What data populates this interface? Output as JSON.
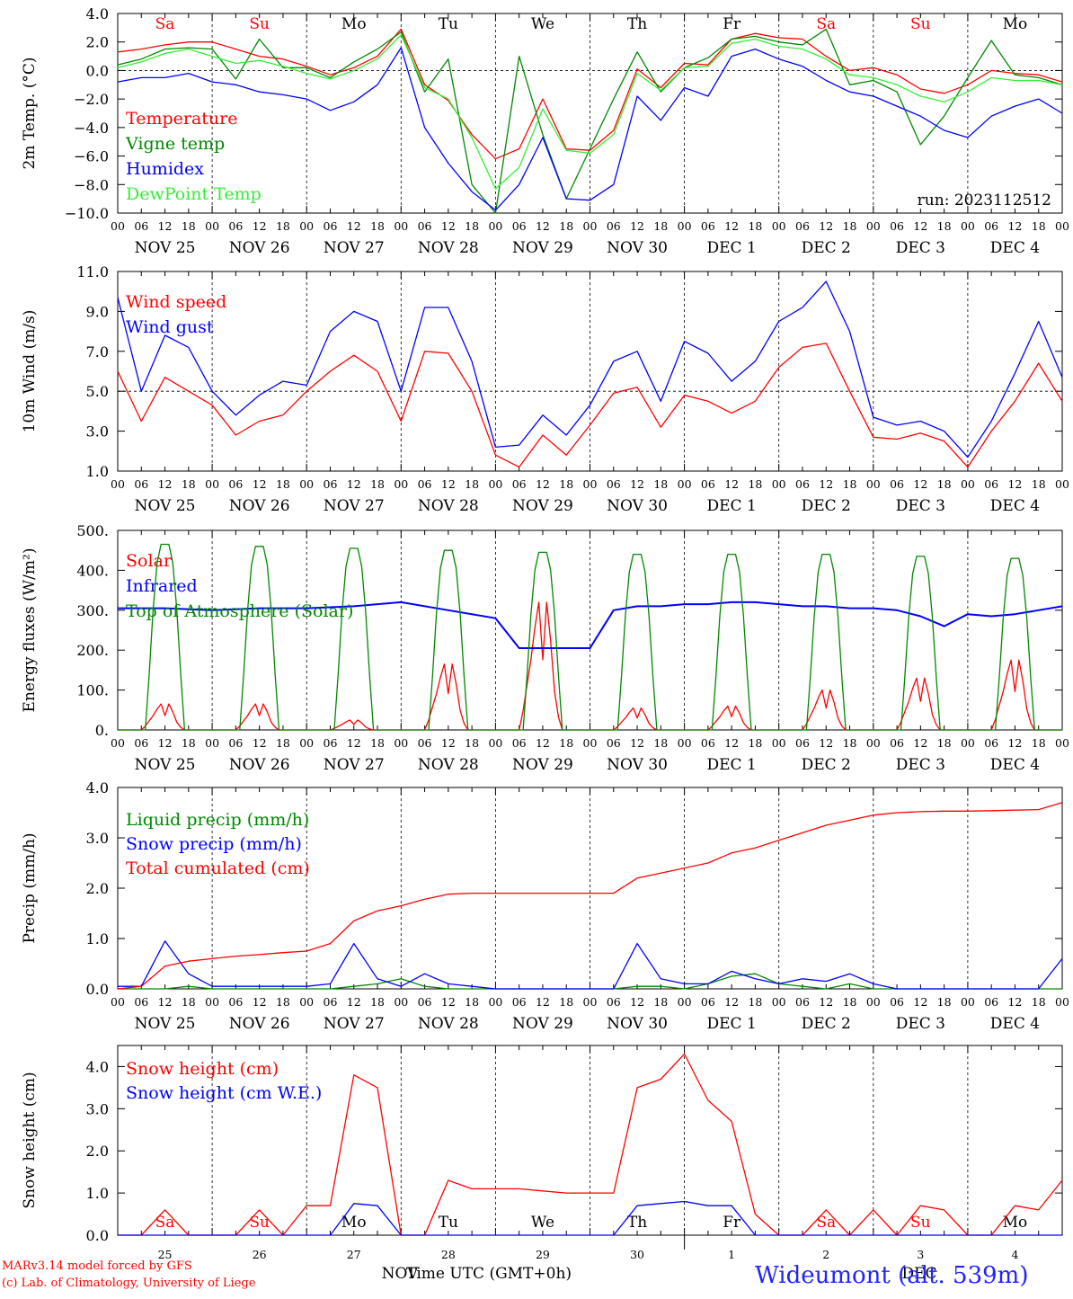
{
  "domain": "Chart",
  "footer": {
    "model": "MARv3.14 model forced by GFS",
    "credit": "(c) Lab. of Climatology, University of Liege",
    "station": "Wideumont (alt. 539m)",
    "xlabel": "Time UTC (GMT+0h)"
  },
  "colors": {
    "red": "#ff0000",
    "green": "#008800",
    "blue": "#0000ff",
    "lightgreen": "#33ee33",
    "grid": "#000000"
  },
  "time_axis": {
    "hour_ticks": [
      "00",
      "06",
      "12",
      "18"
    ],
    "date_labels": [
      "NOV 25",
      "NOV 26",
      "NOV 27",
      "NOV 28",
      "NOV 29",
      "NOV 30",
      "DEC  1",
      "DEC  2",
      "DEC  3",
      "DEC  4"
    ],
    "weekdays": [
      "Sa",
      "Su",
      "Mo",
      "Tu",
      "We",
      "Th",
      "Fr",
      "Sa",
      "Su",
      "Mo"
    ],
    "weekday_colors": [
      "red",
      "red",
      "black",
      "black",
      "black",
      "black",
      "black",
      "red",
      "red",
      "black"
    ],
    "last_panel_days": [
      "25",
      "26",
      "27",
      "28",
      "29",
      "30",
      "1",
      "2",
      "3",
      "4"
    ],
    "last_panel_months": [
      "NOV",
      "DEC"
    ]
  },
  "chart_data": [
    {
      "type": "line",
      "ylabel": "2m Temp. (°C)",
      "ylim": [
        -10,
        4
      ],
      "yticks": [
        "4.0",
        "2.0",
        "0.0",
        "−2.0",
        "−4.0",
        "−6.0",
        "−8.0",
        "−10.0"
      ],
      "ytick_values": [
        4,
        2,
        0,
        -2,
        -4,
        -6,
        -8,
        -10
      ],
      "ref_line": 0,
      "annotation": "run: 2023112512",
      "x_hours": [
        0,
        6,
        12,
        18,
        24,
        30,
        36,
        42,
        48,
        54,
        60,
        66,
        72,
        78,
        84,
        90,
        96,
        102,
        108,
        114,
        120,
        126,
        132,
        138,
        144,
        150,
        156,
        162,
        168,
        174,
        180,
        186,
        192,
        198,
        204,
        210,
        216,
        222,
        228,
        234,
        240
      ],
      "series": [
        {
          "name": "Temperature",
          "color": "red",
          "values": [
            1.3,
            1.5,
            1.8,
            2.0,
            2.0,
            1.5,
            1.0,
            0.8,
            0.3,
            -0.3,
            0.2,
            1.0,
            2.9,
            -1.0,
            -2.1,
            -4.5,
            -6.2,
            -5.5,
            -2.0,
            -5.5,
            -5.6,
            -4.2,
            0.1,
            -1.2,
            0.5,
            0.4,
            2.2,
            2.6,
            2.3,
            2.2,
            1.0,
            0.0,
            0.2,
            -0.3,
            -1.3,
            -1.6,
            -1.0,
            0.0,
            -0.2,
            -0.3,
            -0.8
          ]
        },
        {
          "name": "Vigne temp",
          "color": "green",
          "values": [
            0.4,
            0.8,
            1.5,
            1.6,
            1.5,
            -0.6,
            2.2,
            0.2,
            0.2,
            -0.5,
            0.6,
            1.5,
            2.7,
            -1.5,
            0.8,
            -8.0,
            -10.0,
            1.0,
            -4.5,
            -9.0,
            -5.5,
            -2.0,
            1.3,
            -1.5,
            0.2,
            0.9,
            2.2,
            2.4,
            2.0,
            1.8,
            2.9,
            -1.0,
            -0.7,
            -1.5,
            -5.2,
            -3.2,
            -0.5,
            2.1,
            -0.3,
            -0.5,
            -1.0
          ]
        },
        {
          "name": "Humidex",
          "color": "blue",
          "values": [
            -0.8,
            -0.5,
            -0.5,
            -0.2,
            -0.8,
            -1.0,
            -1.5,
            -1.7,
            -2.0,
            -2.8,
            -2.2,
            -1.0,
            1.6,
            -4.0,
            -6.5,
            -8.5,
            -9.8,
            -8.0,
            -4.7,
            -9.0,
            -9.1,
            -8.0,
            -1.8,
            -3.5,
            -1.2,
            -1.8,
            1.0,
            1.5,
            0.8,
            0.3,
            -0.7,
            -1.5,
            -1.8,
            -2.5,
            -3.2,
            -4.2,
            -4.7,
            -3.2,
            -2.5,
            -2.0,
            -3.0
          ]
        },
        {
          "name": "DewPoint Temp",
          "color": "lightgreen",
          "values": [
            0.2,
            0.6,
            1.2,
            1.5,
            1.0,
            0.5,
            0.7,
            0.3,
            -0.2,
            -0.6,
            0.0,
            0.8,
            2.5,
            -1.2,
            -2.0,
            -4.7,
            -8.3,
            -6.8,
            -2.7,
            -5.6,
            -5.8,
            -4.5,
            -0.2,
            -1.4,
            0.2,
            0.3,
            1.9,
            2.2,
            1.7,
            1.5,
            0.8,
            -0.3,
            -0.5,
            -1.0,
            -1.8,
            -2.2,
            -1.5,
            -0.5,
            -0.7,
            -0.7,
            -1.0
          ]
        }
      ]
    },
    {
      "type": "line",
      "ylabel": "10m Wind (m/s)",
      "ylim": [
        1,
        11
      ],
      "yticks": [
        "11.0",
        "9.0",
        "7.0",
        "5.0",
        "3.0",
        "1.0"
      ],
      "ytick_values": [
        11,
        9,
        7,
        5,
        3,
        1
      ],
      "ref_line": 5,
      "x_hours": [
        0,
        6,
        12,
        18,
        24,
        30,
        36,
        42,
        48,
        54,
        60,
        66,
        72,
        78,
        84,
        90,
        96,
        102,
        108,
        114,
        120,
        126,
        132,
        138,
        144,
        150,
        156,
        162,
        168,
        174,
        180,
        186,
        192,
        198,
        204,
        210,
        216,
        222,
        228,
        234,
        240
      ],
      "series": [
        {
          "name": "Wind speed",
          "color": "red",
          "values": [
            6.0,
            3.5,
            5.7,
            5.0,
            4.3,
            2.8,
            3.5,
            3.8,
            5.0,
            6.0,
            6.8,
            6.0,
            3.5,
            7.0,
            6.9,
            5.0,
            1.8,
            1.2,
            2.8,
            1.8,
            3.3,
            4.9,
            5.2,
            3.2,
            4.8,
            4.5,
            3.9,
            4.5,
            6.2,
            7.2,
            7.4,
            5.0,
            2.7,
            2.6,
            2.9,
            2.5,
            1.2,
            3.0,
            4.5,
            6.4,
            4.5
          ]
        },
        {
          "name": "Wind gust",
          "color": "blue",
          "values": [
            9.7,
            5.0,
            7.8,
            7.2,
            5.0,
            3.8,
            4.8,
            5.5,
            5.3,
            8.0,
            9.0,
            8.5,
            5.0,
            9.2,
            9.2,
            6.5,
            2.2,
            2.3,
            3.8,
            2.8,
            4.3,
            6.5,
            7.0,
            4.5,
            7.5,
            6.9,
            5.5,
            6.5,
            8.5,
            9.2,
            10.5,
            8.0,
            3.7,
            3.3,
            3.5,
            3.0,
            1.7,
            3.5,
            5.9,
            8.5,
            5.7
          ]
        }
      ]
    },
    {
      "type": "line",
      "ylabel": "Energy fluxes (W/m²)",
      "ylim": [
        0,
        500
      ],
      "yticks": [
        "500.",
        "400.",
        "300.",
        "200.",
        "100.",
        "0."
      ],
      "ytick_values": [
        500,
        400,
        300,
        200,
        100,
        0
      ],
      "x_hours": [
        0,
        3,
        6,
        7,
        8,
        9,
        10,
        11,
        12,
        13,
        14,
        15,
        16,
        17,
        18,
        21,
        24
      ],
      "daily_peaks": {
        "Solar": [
          65,
          65,
          25,
          165,
          320,
          55,
          60,
          100,
          130,
          175
        ],
        "Top of Atmosphere (Solar)": [
          465,
          460,
          455,
          450,
          445,
          440,
          440,
          440,
          435,
          430
        ]
      },
      "series": [
        {
          "name": "Solar",
          "color": "red",
          "kind": "daily"
        },
        {
          "name": "Infrared",
          "color": "blue",
          "x": [
            0,
            12,
            24,
            36,
            48,
            60,
            72,
            84,
            96,
            102,
            108,
            114,
            120,
            126,
            132,
            138,
            144,
            150,
            156,
            162,
            168,
            174,
            180,
            186,
            192,
            198,
            204,
            210,
            216,
            222,
            228,
            234,
            240
          ],
          "values": [
            305,
            305,
            300,
            305,
            305,
            310,
            320,
            300,
            280,
            205,
            205,
            205,
            205,
            300,
            310,
            310,
            315,
            315,
            320,
            320,
            315,
            310,
            310,
            305,
            305,
            300,
            285,
            260,
            290,
            285,
            290,
            300,
            310
          ]
        },
        {
          "name": "Top of Atmosphere (Solar)",
          "color": "green",
          "kind": "daily"
        }
      ]
    },
    {
      "type": "line",
      "ylabel": "Precip (mm/h)",
      "ylim": [
        0,
        4
      ],
      "yticks": [
        "4.0",
        "3.0",
        "2.0",
        "1.0",
        "0.0"
      ],
      "ytick_values": [
        4,
        3,
        2,
        1,
        0
      ],
      "x_hours": [
        0,
        6,
        12,
        18,
        24,
        30,
        36,
        42,
        48,
        54,
        60,
        66,
        72,
        78,
        84,
        90,
        96,
        102,
        108,
        114,
        120,
        126,
        132,
        138,
        144,
        150,
        156,
        162,
        168,
        174,
        180,
        186,
        192,
        198,
        204,
        210,
        216,
        222,
        228,
        234,
        240
      ],
      "series": [
        {
          "name": "Liquid precip (mm/h)",
          "color": "green",
          "values": [
            0,
            0,
            0,
            0.05,
            0,
            0,
            0,
            0,
            0,
            0,
            0.05,
            0.1,
            0.2,
            0.05,
            0,
            0,
            0,
            0,
            0,
            0,
            0,
            0,
            0.05,
            0.05,
            0,
            0.1,
            0.25,
            0.3,
            0.1,
            0.05,
            0,
            0.1,
            0,
            0,
            0,
            0,
            0,
            0,
            0,
            0,
            0
          ]
        },
        {
          "name": "Snow precip (mm/h)",
          "color": "blue",
          "values": [
            0.05,
            0.05,
            0.95,
            0.3,
            0.05,
            0.05,
            0.05,
            0.05,
            0.05,
            0.1,
            0.9,
            0.2,
            0.05,
            0.3,
            0.1,
            0.05,
            0,
            0,
            0,
            0,
            0,
            0,
            0.9,
            0.2,
            0.1,
            0.1,
            0.35,
            0.2,
            0.1,
            0.2,
            0.15,
            0.3,
            0.1,
            0,
            0,
            0,
            0,
            0,
            0,
            0,
            0.6
          ]
        },
        {
          "name": "Total cumulated (cm)",
          "color": "red",
          "values": [
            0.0,
            0.05,
            0.45,
            0.55,
            0.6,
            0.65,
            0.68,
            0.72,
            0.75,
            0.9,
            1.35,
            1.55,
            1.65,
            1.78,
            1.88,
            1.9,
            1.9,
            1.9,
            1.9,
            1.9,
            1.9,
            1.9,
            2.2,
            2.3,
            2.4,
            2.5,
            2.7,
            2.8,
            2.95,
            3.1,
            3.25,
            3.35,
            3.45,
            3.5,
            3.52,
            3.53,
            3.53,
            3.54,
            3.55,
            3.56,
            3.7
          ]
        }
      ]
    },
    {
      "type": "line",
      "ylabel": "Snow height (cm)",
      "ylim": [
        0,
        4.5
      ],
      "yticks": [
        "4.0",
        "3.0",
        "2.0",
        "1.0",
        "0.0"
      ],
      "ytick_values": [
        4,
        3,
        2,
        1,
        0
      ],
      "x_hours": [
        0,
        6,
        12,
        18,
        24,
        30,
        36,
        42,
        48,
        54,
        60,
        66,
        72,
        78,
        84,
        90,
        96,
        102,
        108,
        114,
        120,
        126,
        132,
        138,
        144,
        150,
        156,
        162,
        168,
        174,
        180,
        186,
        192,
        198,
        204,
        210,
        216,
        222,
        228,
        234,
        240
      ],
      "series": [
        {
          "name": "Snow height (cm)",
          "color": "red",
          "values": [
            0,
            0,
            0.6,
            0,
            0,
            0,
            0.6,
            0,
            0.7,
            0.7,
            3.8,
            3.5,
            0,
            0,
            1.3,
            1.1,
            1.1,
            1.1,
            1.05,
            1.0,
            1.0,
            1.0,
            3.5,
            3.7,
            4.3,
            3.2,
            2.7,
            0.5,
            0,
            0,
            0.6,
            0,
            0.6,
            0,
            0.7,
            0.6,
            0,
            0,
            0.7,
            0.6,
            1.3
          ]
        },
        {
          "name": "Snow height (cm W.E.)",
          "color": "blue",
          "values": [
            0,
            0,
            0,
            0,
            0,
            0,
            0,
            0,
            0,
            0,
            0.75,
            0.7,
            0,
            0,
            0,
            0,
            0,
            0,
            0,
            0,
            0,
            0,
            0.7,
            0.75,
            0.8,
            0.7,
            0.7,
            0,
            0,
            0,
            0,
            0,
            0,
            0,
            0,
            0,
            0,
            0,
            0,
            0,
            0
          ]
        }
      ]
    }
  ]
}
